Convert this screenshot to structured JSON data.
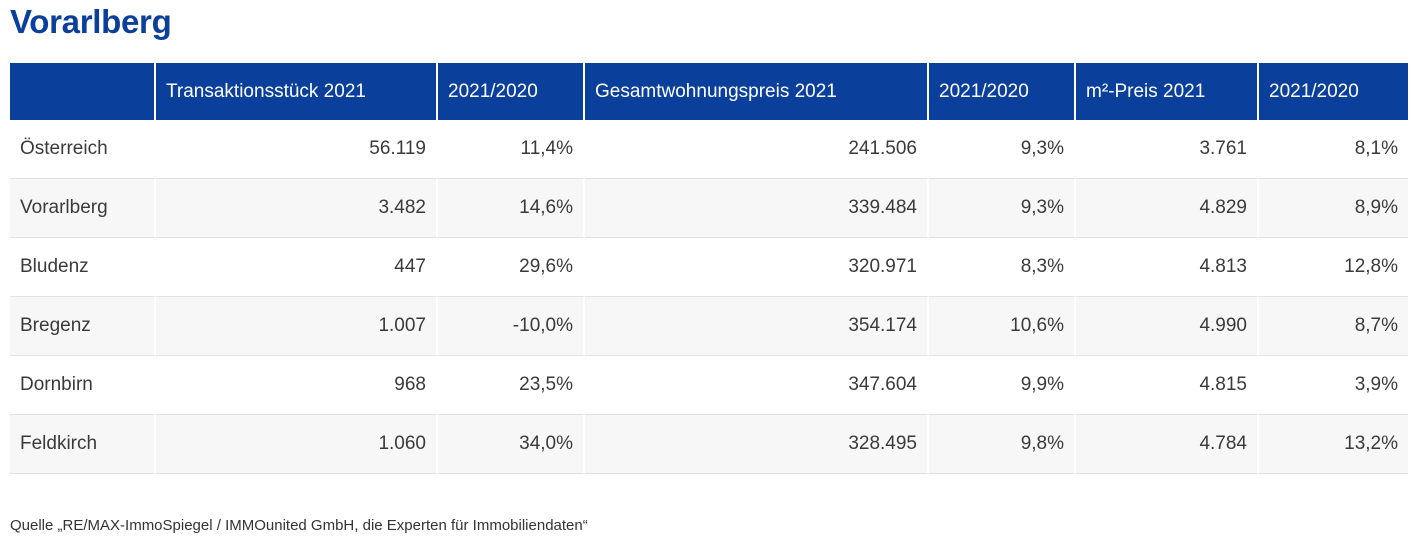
{
  "title": "Vorarlberg",
  "table": {
    "headers": [
      "",
      "Transaktionsstück 2021",
      "2021/2020",
      "Gesamtwohnungspreis 2021",
      "2021/2020",
      "m²-Preis 2021",
      "2021/2020"
    ],
    "rows": [
      [
        "Österreich",
        "56.119",
        "11,4%",
        "241.506",
        "9,3%",
        "3.761",
        "8,1%"
      ],
      [
        "Vorarlberg",
        "3.482",
        "14,6%",
        "339.484",
        "9,3%",
        "4.829",
        "8,9%"
      ],
      [
        "Bludenz",
        "447",
        "29,6%",
        "320.971",
        "8,3%",
        "4.813",
        "12,8%"
      ],
      [
        "Bregenz",
        "1.007",
        "-10,0%",
        "354.174",
        "10,6%",
        "4.990",
        "8,7%"
      ],
      [
        "Dornbirn",
        "968",
        "23,5%",
        "347.604",
        "9,9%",
        "4.815",
        "3,9%"
      ],
      [
        "Feldkirch",
        "1.060",
        "34,0%",
        "328.495",
        "9,8%",
        "4.784",
        "13,2%"
      ]
    ]
  },
  "source": "Quelle „RE/MAX-ImmoSpiegel / IMMOunited GmbH, die Experten für Immobiliendaten“",
  "colors": {
    "header_bg": "#0a3f9c",
    "title": "#0a3f9c",
    "row_alt": "#f7f7f7"
  }
}
